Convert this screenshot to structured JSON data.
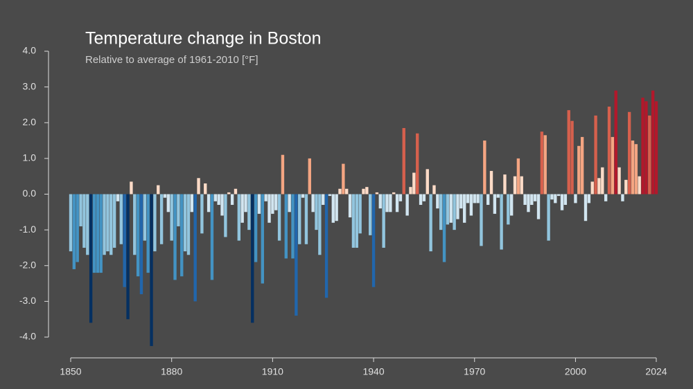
{
  "chart_data": {
    "type": "bar",
    "title": "Temperature change in Boston",
    "subtitle": "Relative to average of 1961-2010  [°F]",
    "x": [
      1850,
      1851,
      1852,
      1853,
      1854,
      1855,
      1856,
      1857,
      1858,
      1859,
      1860,
      1861,
      1862,
      1863,
      1864,
      1865,
      1866,
      1867,
      1868,
      1869,
      1870,
      1871,
      1872,
      1873,
      1874,
      1875,
      1876,
      1877,
      1878,
      1879,
      1880,
      1881,
      1882,
      1883,
      1884,
      1885,
      1886,
      1887,
      1888,
      1889,
      1890,
      1891,
      1892,
      1893,
      1894,
      1895,
      1896,
      1897,
      1898,
      1899,
      1900,
      1901,
      1902,
      1903,
      1904,
      1905,
      1906,
      1907,
      1908,
      1909,
      1910,
      1911,
      1912,
      1913,
      1914,
      1915,
      1916,
      1917,
      1918,
      1919,
      1920,
      1921,
      1922,
      1923,
      1924,
      1925,
      1926,
      1927,
      1928,
      1929,
      1930,
      1931,
      1932,
      1933,
      1934,
      1935,
      1936,
      1937,
      1938,
      1939,
      1940,
      1941,
      1942,
      1943,
      1944,
      1945,
      1946,
      1947,
      1948,
      1949,
      1950,
      1951,
      1952,
      1953,
      1954,
      1955,
      1956,
      1957,
      1958,
      1959,
      1960,
      1961,
      1962,
      1963,
      1964,
      1965,
      1966,
      1967,
      1968,
      1969,
      1970,
      1971,
      1972,
      1973,
      1974,
      1975,
      1976,
      1977,
      1978,
      1979,
      1980,
      1981,
      1982,
      1983,
      1984,
      1985,
      1986,
      1987,
      1988,
      1989,
      1990,
      1991,
      1992,
      1993,
      1994,
      1995,
      1996,
      1997,
      1998,
      1999,
      2000,
      2001,
      2002,
      2003,
      2004,
      2005,
      2006,
      2007,
      2008,
      2009,
      2010,
      2011,
      2012,
      2013,
      2014,
      2015,
      2016,
      2017,
      2018,
      2019,
      2020,
      2021,
      2022,
      2023,
      2024
    ],
    "values": [
      -1.6,
      -2.1,
      -1.9,
      -0.9,
      -1.5,
      -1.7,
      -3.6,
      -2.2,
      -2.2,
      -2.2,
      -1.7,
      -1.6,
      -1.7,
      -1.5,
      -0.2,
      -1.4,
      -2.6,
      -3.5,
      0.35,
      -1.7,
      -2.3,
      -2.8,
      -1.3,
      -2.2,
      -4.25,
      -1.6,
      0.25,
      -1.4,
      -0.1,
      -0.5,
      -1.3,
      -2.4,
      -0.9,
      -2.3,
      -1.6,
      -1.7,
      -0.5,
      -3.0,
      0.45,
      -1.1,
      0.3,
      -0.5,
      -2.4,
      -0.2,
      -0.3,
      -0.6,
      -1.2,
      0.05,
      -0.3,
      0.15,
      -1.3,
      -0.8,
      -0.5,
      -1.0,
      -3.6,
      -1.9,
      -0.55,
      -2.5,
      -0.2,
      -0.8,
      -0.55,
      -0.45,
      -1.3,
      1.1,
      -1.8,
      -0.5,
      -1.8,
      -3.4,
      -1.4,
      -0.1,
      -1.4,
      1.0,
      -0.5,
      -1.0,
      -1.7,
      -0.3,
      -2.9,
      -0.05,
      -0.8,
      -0.75,
      0.15,
      0.85,
      0.15,
      -0.65,
      -1.5,
      -1.5,
      -1.1,
      0.15,
      0.2,
      -1.15,
      -2.6,
      0.05,
      -0.4,
      -1.5,
      -0.5,
      -0.5,
      0.05,
      -0.5,
      -0.2,
      1.85,
      -0.6,
      0.2,
      0.6,
      1.7,
      -0.3,
      -0.2,
      0.7,
      -1.6,
      0.25,
      -0.4,
      -1.0,
      -1.9,
      -0.85,
      -0.8,
      -1.0,
      -0.7,
      -0.4,
      -0.8,
      -0.25,
      -0.6,
      -0.25,
      -0.25,
      -1.45,
      1.5,
      -0.3,
      0.65,
      -0.55,
      -0.1,
      -1.55,
      0.55,
      -0.85,
      -0.6,
      0.5,
      1.0,
      0.5,
      -0.3,
      -0.5,
      -0.3,
      -0.2,
      -0.7,
      1.75,
      1.65,
      -1.3,
      -0.15,
      -0.25,
      -0.05,
      -0.45,
      -0.3,
      2.35,
      2.05,
      -0.25,
      1.35,
      1.6,
      -0.75,
      -0.25,
      0.35,
      2.2,
      0.45,
      0.75,
      -0.2,
      2.45,
      1.6,
      2.9,
      0.75,
      -0.2,
      0.4,
      2.3,
      1.5,
      1.4,
      0.5,
      2.7,
      2.6,
      2.2,
      2.9,
      2.6
    ],
    "colormap": [
      "#053061",
      "#2166ac",
      "#4393c3",
      "#92c5de",
      "#d1e5f0",
      "#fddbc7",
      "#f4a582",
      "#d6604d",
      "#b2182b",
      "#67001f"
    ],
    "xlim": [
      1850,
      2024
    ],
    "xticks": [
      1850,
      1880,
      1910,
      1940,
      1970,
      2000,
      2024
    ],
    "ylim": [
      -4,
      4
    ],
    "yticks": [
      {
        "value": -4,
        "label": "-4.0"
      },
      {
        "value": -3,
        "label": "-3.0"
      },
      {
        "value": -2,
        "label": "-2.0"
      },
      {
        "value": -1,
        "label": "-1.0"
      },
      {
        "value": 0,
        "label": "0.0"
      },
      {
        "value": 1,
        "label": "1.0"
      },
      {
        "value": 2,
        "label": "2.0"
      },
      {
        "value": 3,
        "label": "3.0"
      },
      {
        "value": 4,
        "label": "4.0"
      }
    ]
  }
}
